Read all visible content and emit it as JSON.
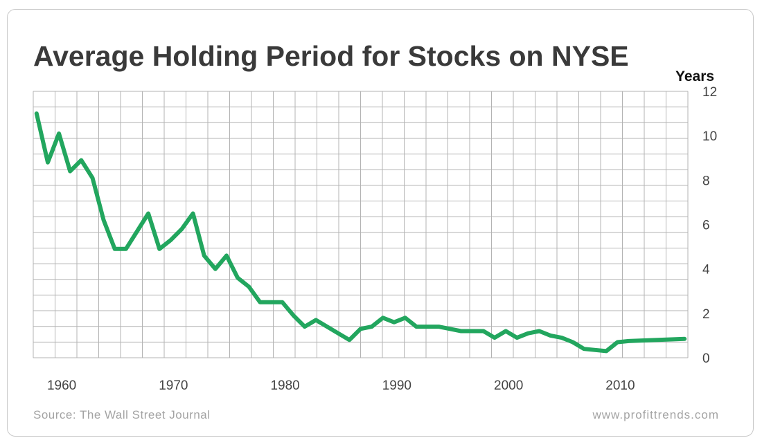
{
  "title": "Average Holding Period for Stocks on NYSE",
  "source": "Source: The Wall Street Journal",
  "website": "www.profittrends.com",
  "colors": {
    "line": "#22a65e",
    "grid": "#b3b3b3",
    "title": "#3a3a3a",
    "footer": "#a3a3a3"
  },
  "chart_data": {
    "type": "line",
    "title": "Average Holding Period for Stocks on NYSE",
    "xlabel": "",
    "ylabel": "Years",
    "xlim": [
      1957.7,
      2016.3
    ],
    "ylim": [
      0,
      12
    ],
    "xticks": [
      1960,
      1970,
      1980,
      1990,
      2000,
      2010
    ],
    "yticks": [
      0,
      2,
      4,
      6,
      8,
      10,
      12
    ],
    "grid": true,
    "y_axis_position": "right",
    "series": [
      {
        "name": "",
        "color": "#22a65e",
        "x": [
          1958,
          1959,
          1960,
          1961,
          1962,
          1963,
          1964,
          1965,
          1966,
          1967,
          1968,
          1969,
          1970,
          1971,
          1972,
          1973,
          1974,
          1975,
          1976,
          1977,
          1978,
          1979,
          1980,
          1981,
          1982,
          1983,
          1984,
          1985,
          1986,
          1987,
          1988,
          1989,
          1990,
          1991,
          1992,
          1993,
          1994,
          1995,
          1996,
          1997,
          1998,
          1999,
          2000,
          2001,
          2002,
          2003,
          2004,
          2005,
          2006,
          2007,
          2008,
          2009,
          2010,
          2011,
          2016
        ],
        "values": [
          11.0,
          8.8,
          10.1,
          8.4,
          8.9,
          8.1,
          6.2,
          4.9,
          4.9,
          5.7,
          6.5,
          4.9,
          5.3,
          5.8,
          6.5,
          4.6,
          4.0,
          4.6,
          3.6,
          3.2,
          2.5,
          2.5,
          2.5,
          1.9,
          1.4,
          1.7,
          1.4,
          1.1,
          0.8,
          1.3,
          1.4,
          1.8,
          1.6,
          1.8,
          1.4,
          1.4,
          1.4,
          1.3,
          1.2,
          1.2,
          1.2,
          0.9,
          1.2,
          0.9,
          1.1,
          1.2,
          1.0,
          0.9,
          0.7,
          0.4,
          0.35,
          0.3,
          0.7,
          0.75,
          0.85
        ]
      }
    ]
  }
}
